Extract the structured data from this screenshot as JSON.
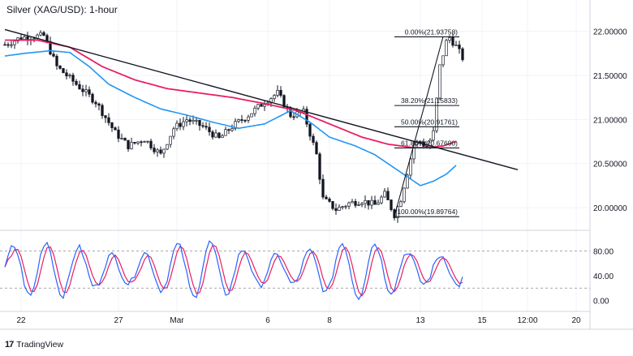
{
  "chart_data": {
    "type": "candlestick",
    "title": "Silver (XAG/USD): 1-hour",
    "y_axis": {
      "range": [
        19.78,
        22.3
      ],
      "ticks": [
        {
          "label": "22.00000",
          "v": 22.0
        },
        {
          "label": "21.50000",
          "v": 21.5
        },
        {
          "label": "21.00000",
          "v": 21.0
        },
        {
          "label": "20.50000",
          "v": 20.5
        },
        {
          "label": "20.00000",
          "v": 20.0
        }
      ]
    },
    "x_axis": {
      "ticks": [
        {
          "label": "22",
          "i": 5
        },
        {
          "label": "27",
          "i": 35
        },
        {
          "label": "Mar",
          "i": 53
        },
        {
          "label": "6",
          "i": 81
        },
        {
          "label": "8",
          "i": 100
        },
        {
          "label": "13",
          "i": 128
        },
        {
          "label": "15",
          "i": 147
        },
        {
          "label": "12:00",
          "i": 161
        },
        {
          "label": "20",
          "i": 176
        }
      ]
    },
    "price_path": [
      [
        0,
        21.85
      ],
      [
        5,
        21.93
      ],
      [
        12,
        21.95
      ],
      [
        16,
        21.6
      ],
      [
        22,
        21.4
      ],
      [
        28,
        21.2
      ],
      [
        34,
        20.85
      ],
      [
        38,
        20.7
      ],
      [
        43,
        20.78
      ],
      [
        48,
        20.6
      ],
      [
        52,
        20.9
      ],
      [
        56,
        21.0
      ],
      [
        61,
        20.92
      ],
      [
        66,
        20.78
      ],
      [
        70,
        20.92
      ],
      [
        75,
        21.05
      ],
      [
        80,
        21.2
      ],
      [
        84,
        21.3
      ],
      [
        88,
        21.05
      ],
      [
        92,
        21.08
      ],
      [
        96,
        20.6
      ],
      [
        98,
        20.1
      ],
      [
        102,
        19.98
      ],
      [
        106,
        20.05
      ],
      [
        110,
        20.08
      ],
      [
        114,
        20.03
      ],
      [
        117,
        20.15
      ],
      [
        120,
        19.92
      ],
      [
        122,
        20.1
      ],
      [
        124,
        20.4
      ],
      [
        126,
        20.72
      ],
      [
        128,
        20.75
      ],
      [
        130,
        20.68
      ],
      [
        132,
        20.85
      ],
      [
        134,
        21.6
      ],
      [
        136,
        21.88
      ],
      [
        137,
        21.93
      ],
      [
        139,
        21.83
      ],
      [
        141,
        21.7
      ]
    ],
    "ema_red": [
      [
        0,
        21.9
      ],
      [
        10,
        21.9
      ],
      [
        20,
        21.82
      ],
      [
        30,
        21.6
      ],
      [
        40,
        21.45
      ],
      [
        50,
        21.35
      ],
      [
        60,
        21.3
      ],
      [
        70,
        21.25
      ],
      [
        80,
        21.18
      ],
      [
        90,
        21.1
      ],
      [
        100,
        20.95
      ],
      [
        110,
        20.8
      ],
      [
        118,
        20.72
      ],
      [
        126,
        20.68
      ],
      [
        130,
        20.68
      ],
      [
        135,
        20.7
      ],
      [
        139,
        20.75
      ]
    ],
    "ema_blue": [
      [
        0,
        21.72
      ],
      [
        6,
        21.75
      ],
      [
        14,
        21.78
      ],
      [
        20,
        21.76
      ],
      [
        26,
        21.6
      ],
      [
        32,
        21.4
      ],
      [
        40,
        21.25
      ],
      [
        48,
        21.12
      ],
      [
        56,
        21.05
      ],
      [
        64,
        20.97
      ],
      [
        72,
        20.9
      ],
      [
        80,
        20.95
      ],
      [
        88,
        21.1
      ],
      [
        94,
        20.97
      ],
      [
        100,
        20.8
      ],
      [
        108,
        20.7
      ],
      [
        114,
        20.6
      ],
      [
        120,
        20.45
      ],
      [
        124,
        20.35
      ],
      [
        128,
        20.25
      ],
      [
        132,
        20.3
      ],
      [
        136,
        20.38
      ],
      [
        139,
        20.48
      ]
    ],
    "trendline": {
      "from": [
        0,
        22.02
      ],
      "to": [
        158,
        20.43
      ]
    },
    "fib_arm": {
      "from": [
        120,
        19.9
      ],
      "to": [
        135,
        21.94
      ]
    },
    "fib_levels": [
      {
        "label": "0.00%(21.93758)",
        "value": 21.93758
      },
      {
        "label": "38.20%(21.15833)",
        "value": 21.15833
      },
      {
        "label": "50.00%(20.91761)",
        "value": 20.91761
      },
      {
        "label": "61.80%(20.67690)",
        "value": 20.6769
      },
      {
        "label": "100.00%(19.89764)",
        "value": 19.89764
      }
    ],
    "fib_range": {
      "i_start": 120,
      "i_end": 140
    },
    "oscillator": {
      "type": "stochastic",
      "range": [
        -15,
        108
      ],
      "ticks": [
        {
          "label": "80.00",
          "v": 80
        },
        {
          "label": "40.00",
          "v": 40
        },
        {
          "label": "0.00",
          "v": 0
        }
      ],
      "bands": [
        80,
        20
      ]
    }
  },
  "branding": {
    "logo": "17",
    "name": "TradingView"
  }
}
